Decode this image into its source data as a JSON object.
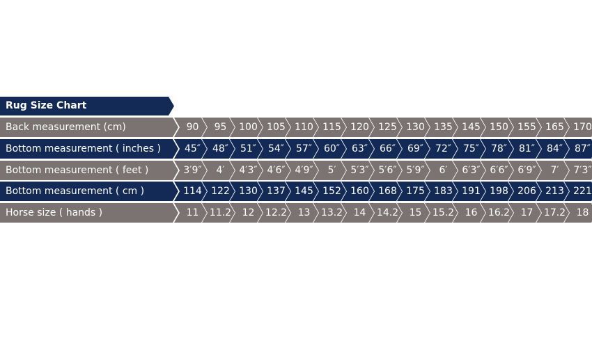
{
  "title": "Rug Size Chart",
  "colors": {
    "navy": "#132a56",
    "gray": "#7b7371"
  },
  "rows": [
    {
      "label": "Back measurement (cm)",
      "style": "gray",
      "values": [
        "90",
        "95",
        "100",
        "105",
        "110",
        "115",
        "120",
        "125",
        "130",
        "135",
        "145",
        "150",
        "155",
        "165",
        "170"
      ]
    },
    {
      "label": "Bottom measurement ( inches )",
      "style": "navy",
      "values": [
        "45″",
        "48″",
        "51″",
        "54″",
        "57″",
        "60″",
        "63″",
        "66″",
        "69″",
        "72″",
        "75″",
        "78″",
        "81″",
        "84″",
        "87″"
      ]
    },
    {
      "label": "Bottom measurement ( feet )",
      "style": "gray",
      "values": [
        "3′9″",
        "4′",
        "4′3″",
        "4′6″",
        "4′9″",
        "5′",
        "5′3″",
        "5′6″",
        "5′9″",
        "6′",
        "6′3″",
        "6′6″",
        "6′9″",
        "7′",
        "7′3″"
      ]
    },
    {
      "label": "Bottom measurement ( cm )",
      "style": "navy",
      "values": [
        "114",
        "122",
        "130",
        "137",
        "145",
        "152",
        "160",
        "168",
        "175",
        "183",
        "191",
        "198",
        "206",
        "213",
        "221"
      ]
    },
    {
      "label": "Horse size ( hands )",
      "style": "gray",
      "values": [
        "11",
        "11.2",
        "12",
        "12.2",
        "13",
        "13.2",
        "14",
        "14.2",
        "15",
        "15.2",
        "16",
        "16.2",
        "17",
        "17.2",
        "18"
      ]
    }
  ]
}
